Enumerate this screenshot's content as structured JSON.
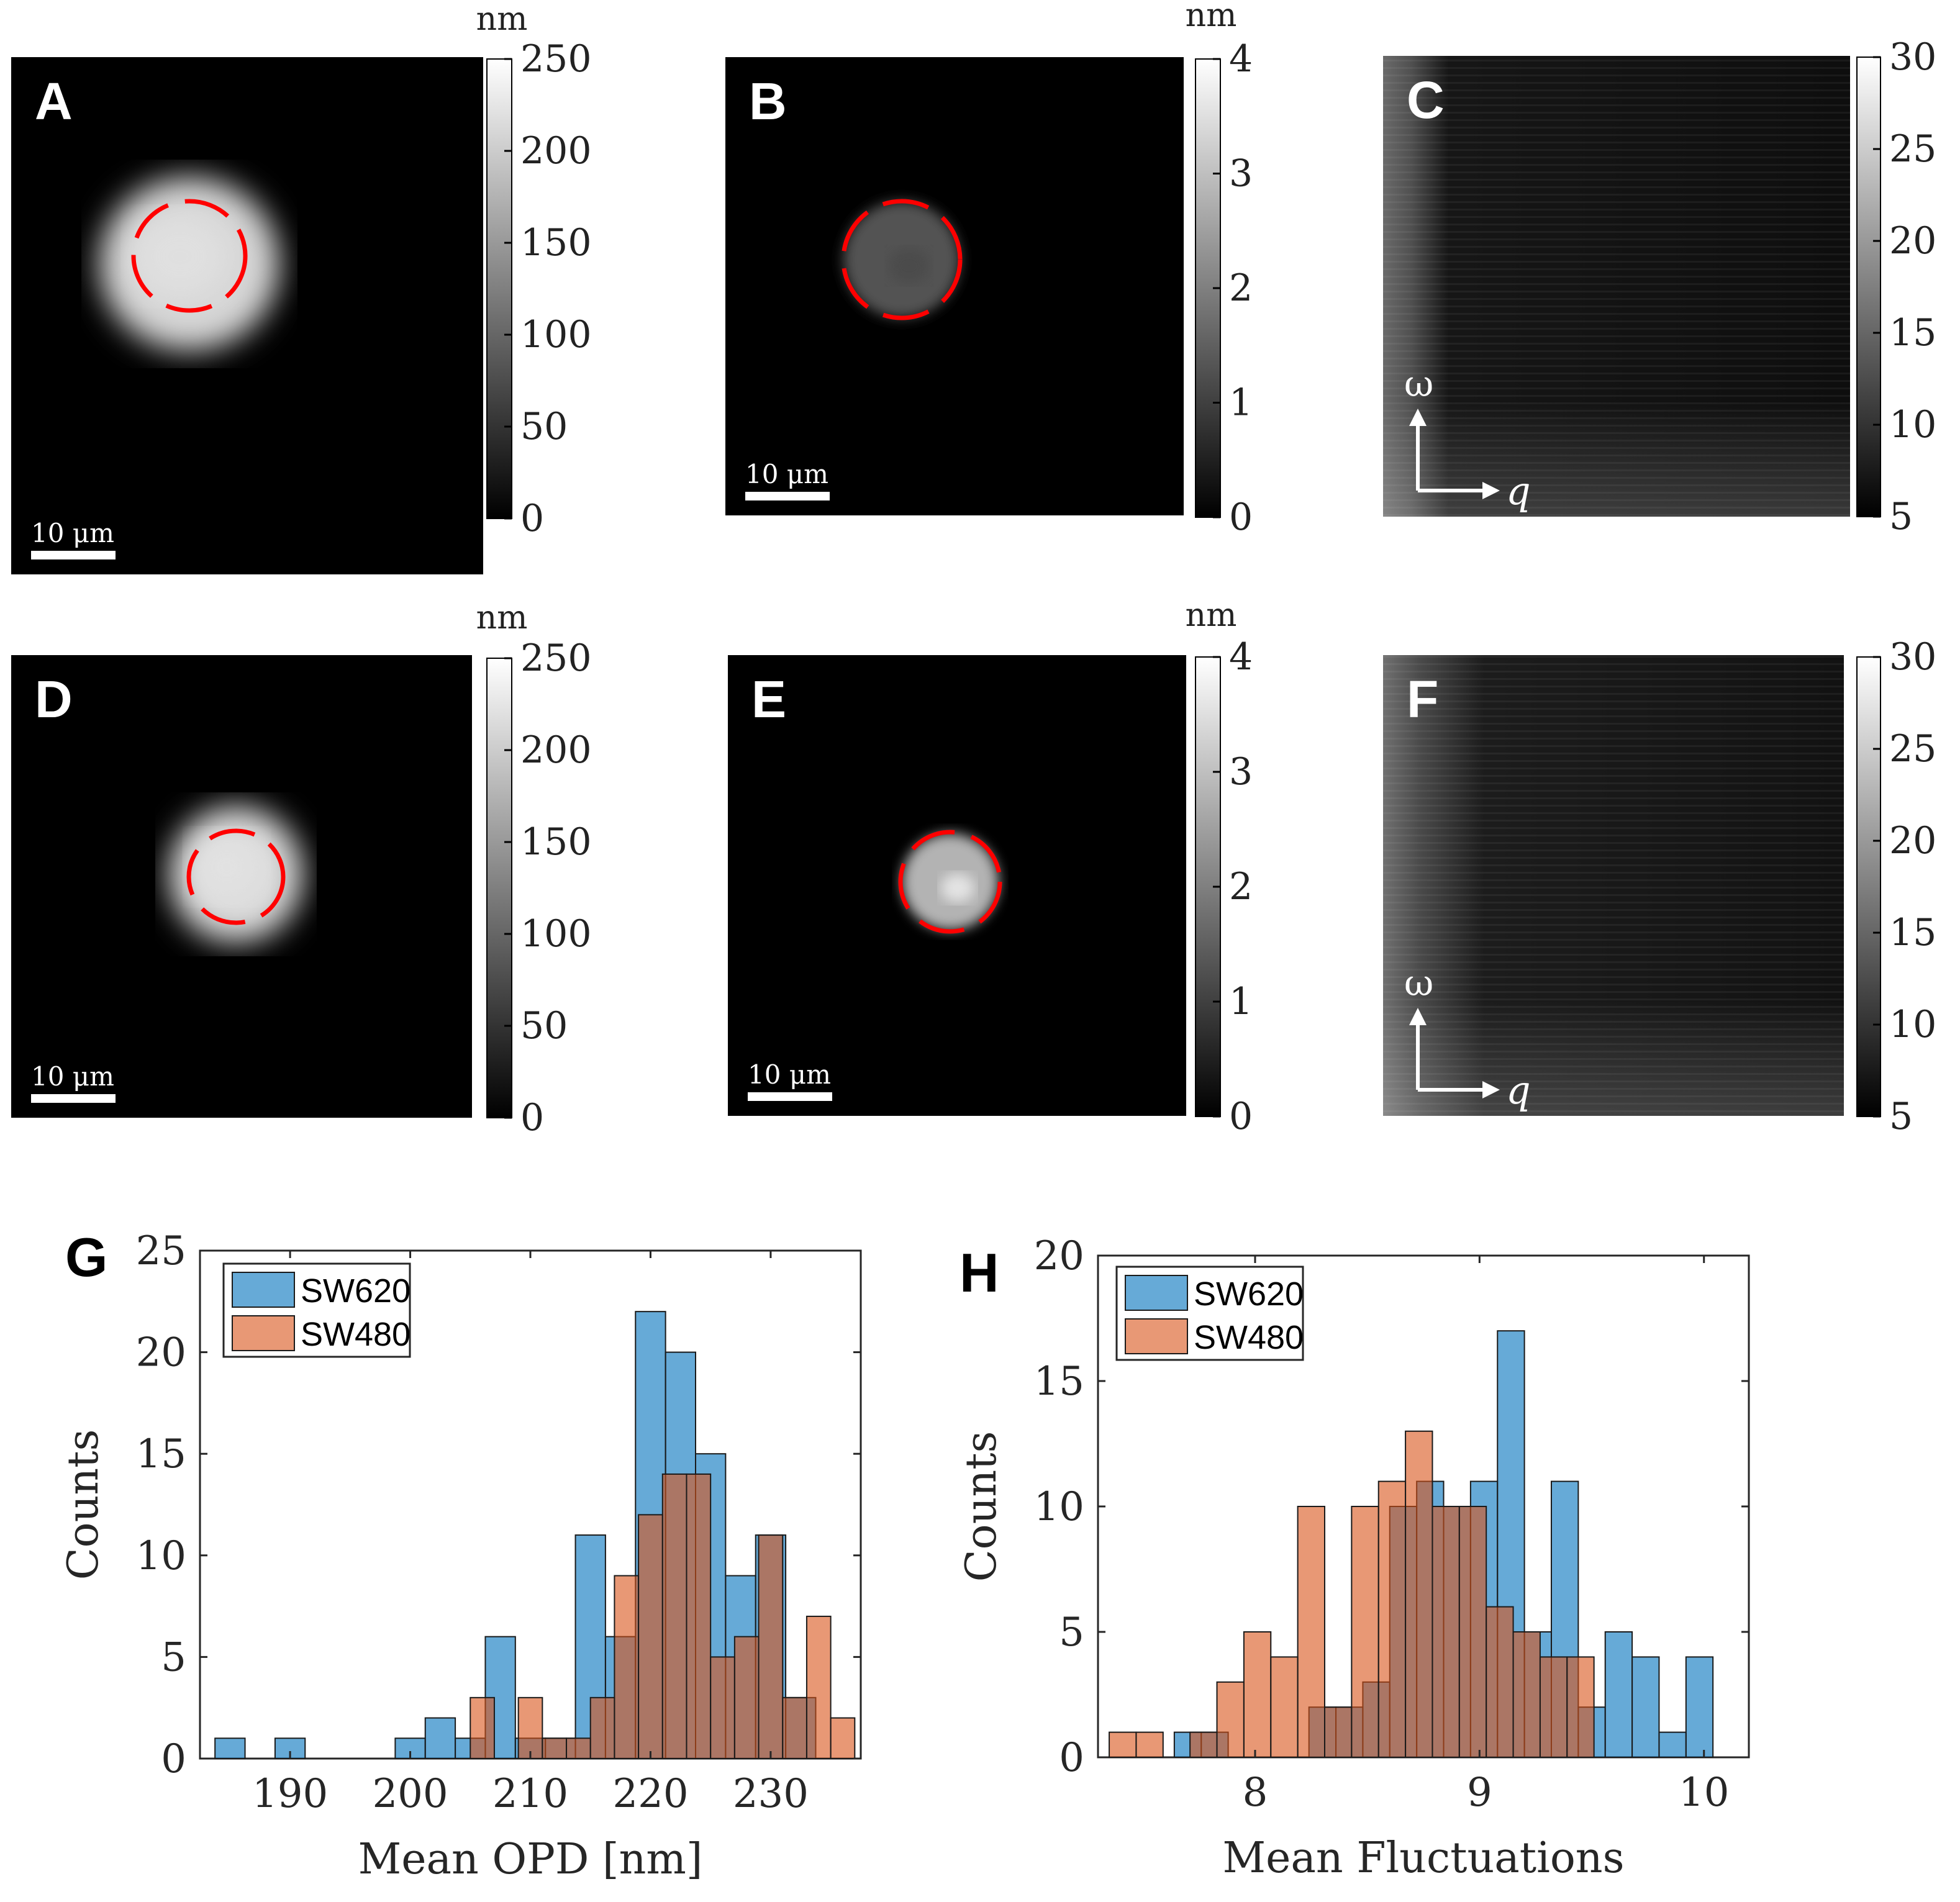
{
  "panels": [
    {
      "letter": "A",
      "type": "height-map",
      "unit": "nm",
      "colorbar_ticks": [
        "0",
        "50",
        "100",
        "150",
        "200",
        "250"
      ],
      "scale_bar": "10 μm",
      "colorbar_min": 0,
      "colorbar_max": 250,
      "blob_value": 210,
      "circle": "dashed-red"
    },
    {
      "letter": "B",
      "type": "fluctuation-map",
      "unit": "nm",
      "colorbar_ticks": [
        "0",
        "1",
        "2",
        "3",
        "4"
      ],
      "scale_bar": "10 μm",
      "colorbar_min": 0,
      "colorbar_max": 4,
      "blob_value": 1.3,
      "circle": "dashed-red"
    },
    {
      "letter": "C",
      "type": "dispersion-map",
      "unit": "",
      "colorbar_ticks": [
        "5",
        "10",
        "15",
        "20",
        "25",
        "30"
      ],
      "axis_y": "ω",
      "axis_x": "q",
      "colorbar_min": 5,
      "colorbar_max": 30
    },
    {
      "letter": "D",
      "type": "height-map",
      "unit": "nm",
      "colorbar_ticks": [
        "0",
        "50",
        "100",
        "150",
        "200",
        "250"
      ],
      "scale_bar": "10 μm",
      "colorbar_min": 0,
      "colorbar_max": 250,
      "blob_value": 215,
      "circle": "dashed-red"
    },
    {
      "letter": "E",
      "type": "fluctuation-map",
      "unit": "nm",
      "colorbar_ticks": [
        "0",
        "1",
        "2",
        "3",
        "4"
      ],
      "scale_bar": "10 μm",
      "colorbar_min": 0,
      "colorbar_max": 4,
      "blob_value": 2.8,
      "circle": "dashed-red"
    },
    {
      "letter": "F",
      "type": "dispersion-map",
      "unit": "",
      "colorbar_ticks": [
        "5",
        "10",
        "15",
        "20",
        "25",
        "30"
      ],
      "axis_y": "ω",
      "axis_x": "q",
      "colorbar_min": 5,
      "colorbar_max": 30
    }
  ],
  "chart_data": [
    {
      "panel": "G",
      "type": "bar",
      "xlabel": "Mean OPD [nm]",
      "ylabel": "Counts",
      "xlim": [
        182.5,
        237.5
      ],
      "ylim": [
        0,
        25
      ],
      "xticks": [
        190,
        200,
        210,
        220,
        230
      ],
      "yticks": [
        0,
        5,
        10,
        15,
        20,
        25
      ],
      "legend_position": "top-left",
      "colors": {
        "SW620": "#0072BD",
        "SW480": "#D95319"
      },
      "series": [
        {
          "name": "SW620",
          "bin_width": 2.5,
          "bins": [
            {
              "x0": 183.75,
              "count": 1
            },
            {
              "x0": 188.75,
              "count": 1
            },
            {
              "x0": 198.75,
              "count": 1
            },
            {
              "x0": 201.25,
              "count": 2
            },
            {
              "x0": 203.75,
              "count": 1
            },
            {
              "x0": 206.25,
              "count": 6
            },
            {
              "x0": 208.75,
              "count": 1
            },
            {
              "x0": 211.25,
              "count": 1
            },
            {
              "x0": 213.75,
              "count": 11
            },
            {
              "x0": 216.25,
              "count": 6
            },
            {
              "x0": 218.75,
              "count": 22
            },
            {
              "x0": 221.25,
              "count": 20
            },
            {
              "x0": 223.75,
              "count": 15
            },
            {
              "x0": 226.25,
              "count": 9
            },
            {
              "x0": 228.75,
              "count": 11
            },
            {
              "x0": 231.25,
              "count": 3
            }
          ]
        },
        {
          "name": "SW480",
          "bin_width": 2,
          "bins": [
            {
              "x0": 205,
              "count": 3
            },
            {
              "x0": 209,
              "count": 3
            },
            {
              "x0": 211,
              "count": 1
            },
            {
              "x0": 213,
              "count": 1
            },
            {
              "x0": 215,
              "count": 3
            },
            {
              "x0": 217,
              "count": 9
            },
            {
              "x0": 219,
              "count": 12
            },
            {
              "x0": 221,
              "count": 14
            },
            {
              "x0": 223,
              "count": 14
            },
            {
              "x0": 225,
              "count": 5
            },
            {
              "x0": 227,
              "count": 6
            },
            {
              "x0": 229,
              "count": 11
            },
            {
              "x0": 231,
              "count": 3
            },
            {
              "x0": 233,
              "count": 7
            },
            {
              "x0": 235,
              "count": 2
            }
          ]
        }
      ]
    },
    {
      "panel": "H",
      "type": "bar",
      "xlabel": "Mean Fluctuations",
      "ylabel": "Counts",
      "xlim": [
        7.3,
        10.2
      ],
      "ylim": [
        0,
        20
      ],
      "xticks": [
        8,
        9,
        10
      ],
      "yticks": [
        0,
        5,
        10,
        15,
        20
      ],
      "legend_position": "top-left",
      "colors": {
        "SW620": "#0072BD",
        "SW480": "#D95319"
      },
      "series": [
        {
          "name": "SW620",
          "bin_width": 0.12,
          "bins": [
            {
              "x0": 7.64,
              "count": 1
            },
            {
              "x0": 7.76,
              "count": 1
            },
            {
              "x0": 8.24,
              "count": 2
            },
            {
              "x0": 8.36,
              "count": 2
            },
            {
              "x0": 8.48,
              "count": 3
            },
            {
              "x0": 8.6,
              "count": 10
            },
            {
              "x0": 8.72,
              "count": 11
            },
            {
              "x0": 8.84,
              "count": 10
            },
            {
              "x0": 8.96,
              "count": 11
            },
            {
              "x0": 9.08,
              "count": 17
            },
            {
              "x0": 9.2,
              "count": 5
            },
            {
              "x0": 9.32,
              "count": 11
            },
            {
              "x0": 9.44,
              "count": 2
            },
            {
              "x0": 9.56,
              "count": 5
            },
            {
              "x0": 9.68,
              "count": 4
            },
            {
              "x0": 9.8,
              "count": 1
            },
            {
              "x0": 9.92,
              "count": 4
            }
          ]
        },
        {
          "name": "SW480",
          "bin_width": 0.12,
          "bins": [
            {
              "x0": 7.35,
              "count": 1
            },
            {
              "x0": 7.47,
              "count": 1
            },
            {
              "x0": 7.71,
              "count": 1
            },
            {
              "x0": 7.83,
              "count": 3
            },
            {
              "x0": 7.95,
              "count": 5
            },
            {
              "x0": 8.07,
              "count": 4
            },
            {
              "x0": 8.19,
              "count": 10
            },
            {
              "x0": 8.31,
              "count": 2
            },
            {
              "x0": 8.43,
              "count": 10
            },
            {
              "x0": 8.55,
              "count": 11
            },
            {
              "x0": 8.67,
              "count": 13
            },
            {
              "x0": 8.79,
              "count": 10
            },
            {
              "x0": 8.91,
              "count": 10
            },
            {
              "x0": 9.03,
              "count": 6
            },
            {
              "x0": 9.15,
              "count": 5
            },
            {
              "x0": 9.27,
              "count": 4
            },
            {
              "x0": 9.39,
              "count": 4
            }
          ]
        }
      ]
    }
  ]
}
